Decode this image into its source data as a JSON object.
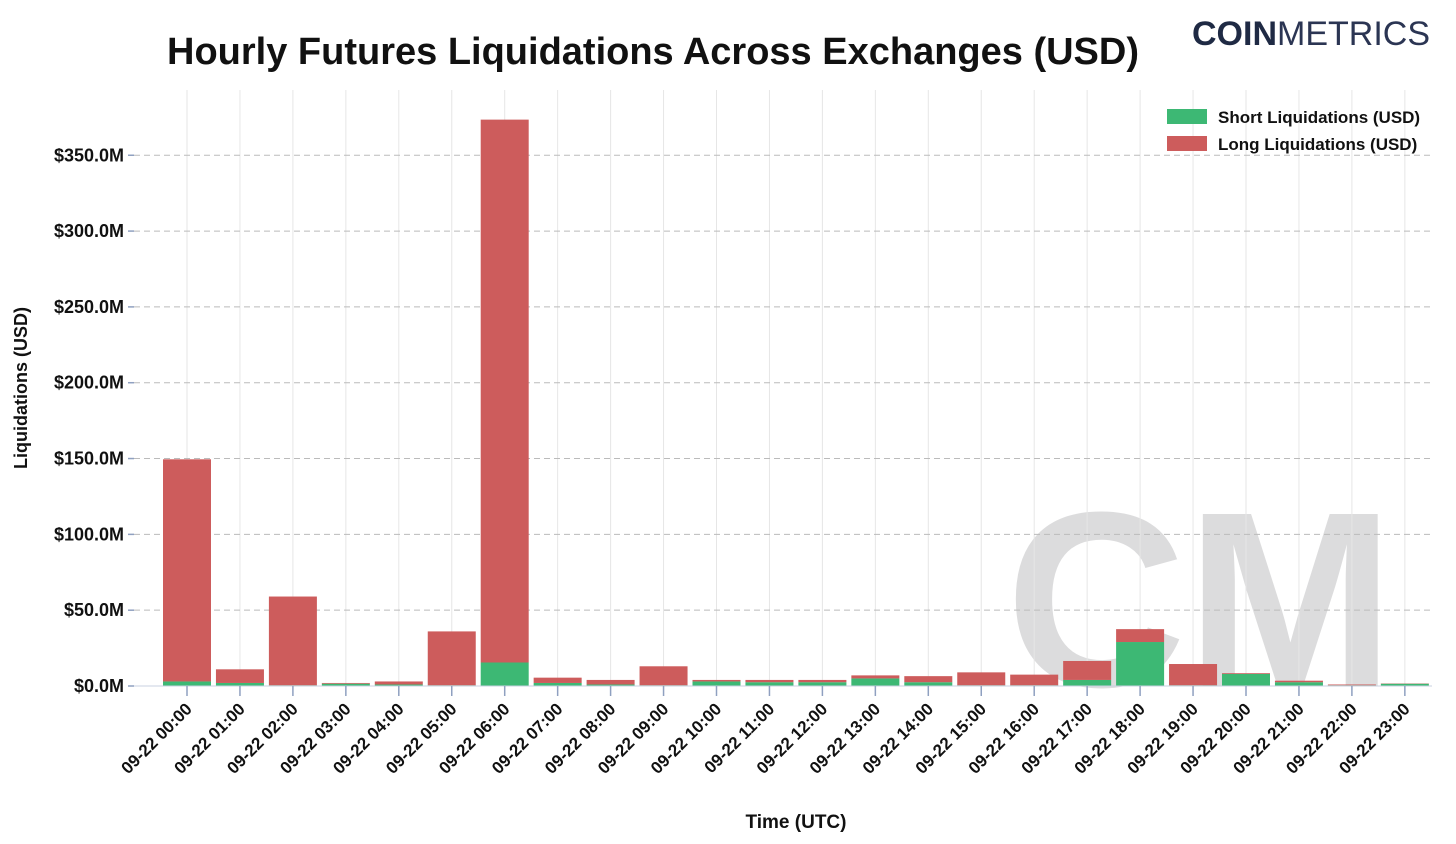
{
  "brand": {
    "logo_bold": "COIN",
    "logo_light": "METRICS",
    "watermark": "CM"
  },
  "colors": {
    "short": "#3DB874",
    "long": "#CD5C5C",
    "grid": "#bbbbbb",
    "text": "#111111",
    "logo_bold": "#1f2a44",
    "logo_light": "#2b3553",
    "watermark": "#d0d0d2"
  },
  "chart_data": {
    "type": "bar",
    "stacked": true,
    "title": "Hourly Futures Liquidations Across Exchanges (USD)",
    "xlabel": "Time (UTC)",
    "ylabel": "Liquidations (USD)",
    "ylim": [
      0,
      390
    ],
    "y_unit": "USD millions",
    "yticks": [
      0,
      50,
      100,
      150,
      200,
      250,
      300,
      350
    ],
    "ytick_labels": [
      "$0.0M",
      "$50.0M",
      "$100.0M",
      "$150.0M",
      "$200.0M",
      "$250.0M",
      "$300.0M",
      "$350.0M"
    ],
    "grid": true,
    "legend_position": "top-right",
    "categories": [
      "09-22 00:00",
      "09-22 01:00",
      "09-22 02:00",
      "09-22 03:00",
      "09-22 04:00",
      "09-22 05:00",
      "09-22 06:00",
      "09-22 07:00",
      "09-22 08:00",
      "09-22 09:00",
      "09-22 10:00",
      "09-22 11:00",
      "09-22 12:00",
      "09-22 13:00",
      "09-22 14:00",
      "09-22 15:00",
      "09-22 16:00",
      "09-22 17:00",
      "09-22 18:00",
      "09-22 19:00",
      "09-22 20:00",
      "09-22 21:00",
      "09-22 22:00",
      "09-22 23:00"
    ],
    "series": [
      {
        "name": "Short Liquidations (USD)",
        "values": [
          3,
          2,
          0.5,
          1.5,
          1,
          0.5,
          15.5,
          2,
          1,
          0.5,
          3,
          2.5,
          2.5,
          5,
          2.5,
          0.5,
          0.5,
          4,
          29,
          0.5,
          8,
          2.5,
          0.5,
          1.5
        ]
      },
      {
        "name": "Long Liquidations (USD)",
        "values": [
          146.5,
          9,
          58.5,
          0.5,
          2,
          35.5,
          358,
          3.5,
          3,
          12.5,
          1,
          1.5,
          1.5,
          2,
          4,
          8.5,
          7,
          12.5,
          8.5,
          14,
          0.5,
          1,
          0.5,
          0.2
        ]
      }
    ]
  }
}
